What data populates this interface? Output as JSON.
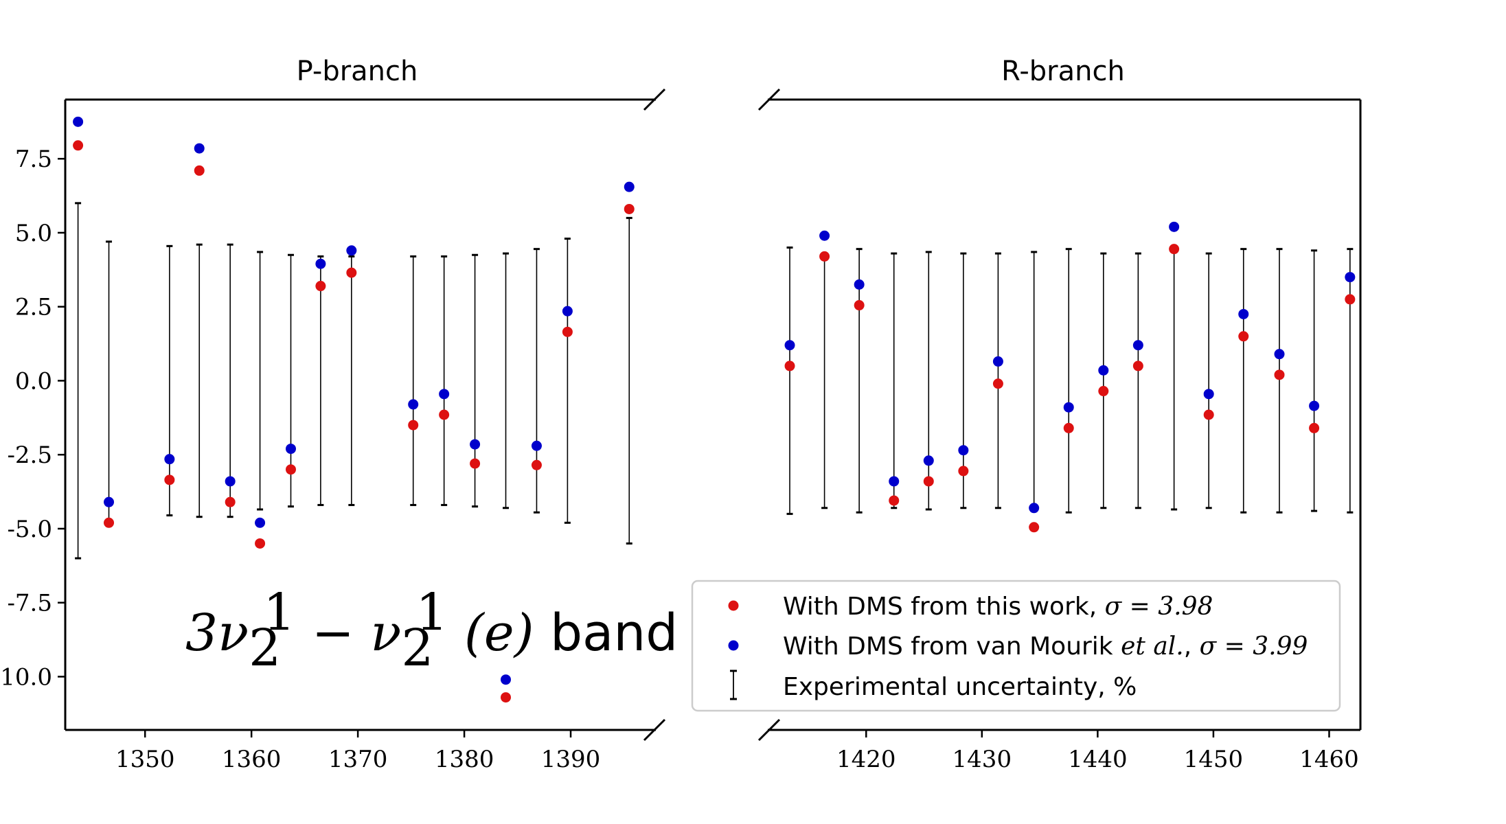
{
  "chart_data": {
    "type": "scatter",
    "title": "",
    "ylabel": "",
    "ylim": [
      -11.8,
      9.5
    ],
    "y_ticks": [
      7.5,
      5.0,
      2.5,
      0.0,
      -2.5,
      -5.0,
      -7.5,
      -10.0
    ],
    "y_tick_labels": [
      "7.5",
      "5.0",
      "2.5",
      "0.0",
      "-2.5",
      "-5.0",
      "-7.5",
      "-10.0"
    ],
    "annotation": {
      "prefix": "3ν",
      "sub": "2",
      "sup": "1",
      "minus": " − ν",
      "sub2": "2",
      "sup2": "1",
      "paren": " (e) ",
      "word": "band"
    },
    "legend": {
      "position": "lower-right",
      "entries": [
        {
          "marker": "red-dot",
          "label_text": "With DMS from this work, ",
          "label_math": "σ = 3.98"
        },
        {
          "marker": "blue-dot",
          "label_text": "With DMS from van Mourik ",
          "label_italic": "et al.",
          "label_tail": ", ",
          "label_math": "σ = 3.99"
        },
        {
          "marker": "errorbar",
          "label_text": "Experimental uncertainty, %"
        }
      ]
    },
    "colors": {
      "red": "#dd1111",
      "blue": "#0000cc",
      "errorbar": "#000000"
    },
    "panels": [
      {
        "name": "P-branch",
        "title": "P-branch",
        "xlim": [
          1342.5,
          1398
        ],
        "x_ticks": [
          1350,
          1360,
          1370,
          1380,
          1390
        ],
        "x_tick_labels": [
          "1350",
          "1360",
          "1370",
          "1380",
          "1390"
        ],
        "series": [
          {
            "name": "With DMS from this work",
            "color": "red",
            "x": [
              1343.7,
              1346.6,
              1352.3,
              1355.1,
              1358.0,
              1360.8,
              1363.7,
              1366.5,
              1369.4,
              1375.2,
              1378.1,
              1381.0,
              1383.9,
              1386.8,
              1389.7,
              1395.5
            ],
            "y": [
              7.95,
              -4.8,
              -3.35,
              7.1,
              -4.1,
              -5.5,
              -3.0,
              3.2,
              3.65,
              -1.5,
              -1.15,
              -2.8,
              -10.7,
              -2.85,
              1.65,
              5.8
            ]
          },
          {
            "name": "With DMS from van Mourik et al.",
            "color": "blue",
            "x": [
              1343.7,
              1346.6,
              1352.3,
              1355.1,
              1358.0,
              1360.8,
              1363.7,
              1366.5,
              1369.4,
              1375.2,
              1378.1,
              1381.0,
              1383.9,
              1386.8,
              1389.7,
              1395.5
            ],
            "y": [
              8.75,
              -4.1,
              -2.65,
              7.85,
              -3.4,
              -4.8,
              -2.3,
              3.95,
              4.4,
              -0.8,
              -0.45,
              -2.15,
              -10.1,
              -2.2,
              2.35,
              6.55
            ]
          },
          {
            "name": "Experimental uncertainty, %",
            "type": "errorbar",
            "x": [
              1343.7,
              1346.6,
              1352.3,
              1355.1,
              1358.0,
              1360.8,
              1363.7,
              1366.5,
              1369.4,
              1375.2,
              1378.1,
              1381.0,
              1383.9,
              1386.8,
              1389.7,
              1395.5
            ],
            "err": [
              6.0,
              4.7,
              4.55,
              4.6,
              4.6,
              4.35,
              4.25,
              4.2,
              4.2,
              4.2,
              4.2,
              4.25,
              4.3,
              4.45,
              4.8,
              5.5
            ]
          }
        ]
      },
      {
        "name": "R-branch",
        "title": "R-branch",
        "xlim": [
          1411.5,
          1462.7
        ],
        "x_ticks": [
          1420,
          1430,
          1440,
          1450,
          1460
        ],
        "x_tick_labels": [
          "1420",
          "1430",
          "1440",
          "1450",
          "1460"
        ],
        "series": [
          {
            "name": "With DMS from this work",
            "color": "red",
            "x": [
              1413.4,
              1416.4,
              1419.4,
              1422.4,
              1425.4,
              1428.4,
              1431.4,
              1434.5,
              1437.5,
              1440.5,
              1443.5,
              1446.6,
              1449.6,
              1452.6,
              1455.7,
              1458.7,
              1461.8
            ],
            "y": [
              0.5,
              4.2,
              2.55,
              -4.05,
              -3.4,
              -3.05,
              -0.1,
              -4.95,
              -1.6,
              -0.35,
              0.5,
              4.45,
              -1.15,
              1.5,
              0.2,
              -1.6,
              2.75
            ]
          },
          {
            "name": "With DMS from van Mourik et al.",
            "color": "blue",
            "x": [
              1413.4,
              1416.4,
              1419.4,
              1422.4,
              1425.4,
              1428.4,
              1431.4,
              1434.5,
              1437.5,
              1440.5,
              1443.5,
              1446.6,
              1449.6,
              1452.6,
              1455.7,
              1458.7,
              1461.8
            ],
            "y": [
              1.2,
              4.9,
              3.25,
              -3.4,
              -2.7,
              -2.35,
              0.65,
              -4.3,
              -0.9,
              0.35,
              1.2,
              5.2,
              -0.45,
              2.25,
              0.9,
              -0.85,
              3.5
            ]
          },
          {
            "name": "Experimental uncertainty, %",
            "type": "errorbar",
            "x": [
              1413.4,
              1416.4,
              1419.4,
              1422.4,
              1425.4,
              1428.4,
              1431.4,
              1434.5,
              1437.5,
              1440.5,
              1443.5,
              1446.6,
              1449.6,
              1452.6,
              1455.7,
              1458.7,
              1461.8
            ],
            "err": [
              4.5,
              4.3,
              4.45,
              4.3,
              4.35,
              4.3,
              4.3,
              4.35,
              4.45,
              4.3,
              4.3,
              4.35,
              4.3,
              4.45,
              4.45,
              4.4,
              4.45
            ]
          }
        ]
      }
    ]
  }
}
